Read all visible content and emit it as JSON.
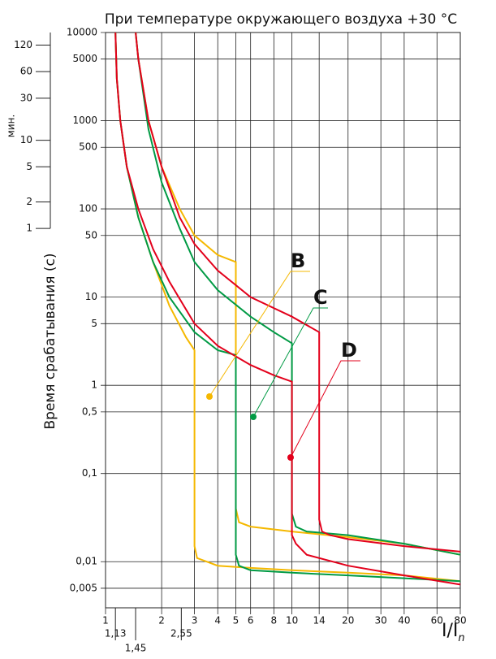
{
  "chart_data": {
    "type": "line",
    "title": "При температуре окружающего воздуха +30 °C",
    "ylabel": "Время срабатывания (с)",
    "xlabel": "I/I",
    "xlabel_sub": "n",
    "xscale": "log",
    "yscale": "log",
    "grid": true,
    "xlim": [
      1,
      80
    ],
    "ylim": [
      0.003,
      10000
    ],
    "xticks": [
      1,
      2,
      3,
      4,
      5,
      6,
      8,
      10,
      14,
      20,
      30,
      40,
      60,
      80,
      {
        "value": 1.13,
        "label": "1,13"
      },
      {
        "value": 1.45,
        "label": "1,45"
      },
      {
        "value": 2.55,
        "label": "2,55"
      }
    ],
    "yticks": [
      {
        "value": 0.005,
        "label": "0,005"
      },
      {
        "value": 0.01,
        "label": "0,01"
      },
      {
        "value": 0.1,
        "label": "0,1"
      },
      {
        "value": 0.5,
        "label": "0,5"
      },
      1,
      5,
      10,
      50,
      100,
      500,
      1000,
      5000,
      10000
    ],
    "y2label": "мин.",
    "y2lim": [
      1,
      166.7
    ],
    "y2ticks": [
      1,
      2,
      5,
      10,
      30,
      60,
      120
    ],
    "series": [
      {
        "name": "B",
        "color": "#f5b800",
        "curves": [
          {
            "x": [
              1.13,
              1.15,
              1.2,
              1.3,
              1.5,
              1.8,
              2.2,
              2.7,
              3,
              3,
              3.1,
              4,
              6,
              10,
              20,
              40,
              80
            ],
            "values": [
              10000,
              3000,
              1000,
              300,
              80,
              25,
              8,
              3.5,
              2.5,
              0.015,
              0.011,
              0.009,
              0.0085,
              0.008,
              0.0075,
              0.007,
              0.006
            ]
          },
          {
            "x": [
              1.45,
              1.5,
              1.7,
              2,
              2.5,
              3,
              4,
              5,
              5,
              5.2,
              6,
              10,
              20,
              40,
              80
            ],
            "values": [
              10000,
              5000,
              1000,
              300,
              100,
              50,
              30,
              25,
              0.04,
              0.028,
              0.025,
              0.022,
              0.019,
              0.016,
              0.012
            ]
          }
        ]
      },
      {
        "name": "C",
        "color": "#009a44",
        "curves": [
          {
            "x": [
              1.13,
              1.15,
              1.2,
              1.3,
              1.5,
              1.8,
              2.2,
              3,
              4,
              5,
              5,
              5.2,
              6,
              10,
              20,
              40,
              80
            ],
            "values": [
              10000,
              3000,
              1000,
              300,
              80,
              25,
              10,
              4,
              2.5,
              2.2,
              0.012,
              0.009,
              0.008,
              0.0075,
              0.007,
              0.0065,
              0.006
            ]
          },
          {
            "x": [
              1.45,
              1.5,
              1.7,
              2,
              2.5,
              3,
              4,
              6,
              8,
              10,
              10,
              10.5,
              12,
              20,
              40,
              80
            ],
            "values": [
              10000,
              5000,
              800,
              200,
              60,
              25,
              12,
              6,
              4,
              3,
              0.035,
              0.025,
              0.022,
              0.02,
              0.016,
              0.012
            ]
          }
        ]
      },
      {
        "name": "D",
        "color": "#e3001b",
        "curves": [
          {
            "x": [
              1.13,
              1.15,
              1.2,
              1.3,
              1.5,
              1.8,
              2.2,
              3,
              4,
              6,
              8,
              10,
              10,
              10.5,
              12,
              20,
              40,
              80
            ],
            "values": [
              10000,
              3000,
              1000,
              300,
              100,
              35,
              15,
              5,
              2.8,
              1.7,
              1.3,
              1.1,
              0.02,
              0.016,
              0.012,
              0.009,
              0.007,
              0.0055
            ]
          },
          {
            "x": [
              1.45,
              1.5,
              1.7,
              2,
              2.5,
              3,
              4,
              6,
              10,
              14,
              14,
              14.5,
              16,
              20,
              40,
              80
            ],
            "values": [
              10000,
              5000,
              1000,
              300,
              80,
              40,
              20,
              10,
              6,
              4,
              0.03,
              0.022,
              0.02,
              0.018,
              0.015,
              0.013
            ]
          }
        ]
      }
    ]
  }
}
